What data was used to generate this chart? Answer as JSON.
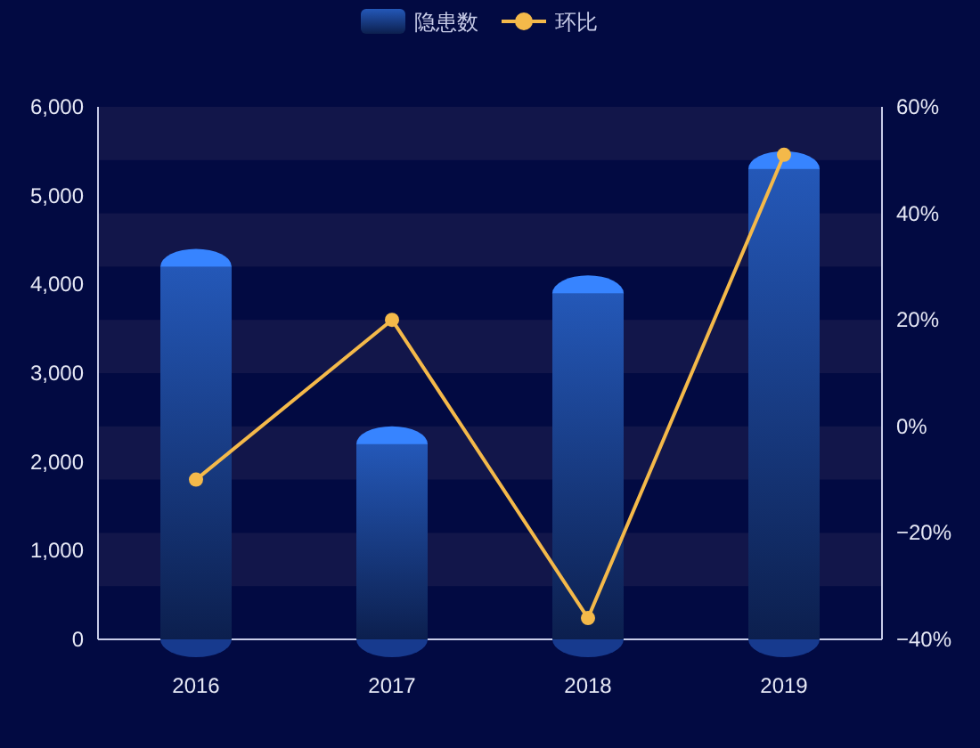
{
  "chart_data": {
    "type": "bar",
    "categories": [
      "2016",
      "2017",
      "2018",
      "2019"
    ],
    "series": [
      {
        "name": "隐患数",
        "color": "#2458b8",
        "values": [
          4200,
          2200,
          3900,
          5300
        ]
      },
      {
        "name": "环比",
        "type": "line",
        "axis": "y2",
        "color": "#f4b94a",
        "values": [
          -10,
          20,
          -36,
          51
        ]
      }
    ],
    "ylim": [
      0,
      6000
    ],
    "yticks": [
      0,
      {
        "value": 1000,
        "label": "1,000"
      },
      {
        "value": 2000,
        "label": "2,000"
      },
      {
        "value": 3000,
        "label": "3,000"
      },
      {
        "value": 4000,
        "label": "4,000"
      },
      {
        "value": 5000,
        "label": "5,000"
      },
      {
        "value": 6000,
        "label": "6,000"
      }
    ],
    "y2lim": [
      -40,
      60
    ],
    "y2ticks": [
      {
        "value": -40,
        "label": "−40%"
      },
      {
        "value": -20,
        "label": "−20%"
      },
      {
        "value": 0,
        "label": "0%"
      },
      {
        "value": 20,
        "label": "20%"
      },
      {
        "value": 40,
        "label": "40%"
      },
      {
        "value": 60,
        "label": "60%"
      }
    ],
    "bands": [
      {
        "axis": "y",
        "from": 5400,
        "to": 6000,
        "color": "#12164a"
      },
      {
        "axis": "y",
        "from": 4200,
        "to": 4800,
        "color": "#12164a"
      },
      {
        "axis": "y",
        "from": 3000,
        "to": 3600,
        "color": "#12164a"
      },
      {
        "axis": "y",
        "from": 1800,
        "to": 2400,
        "color": "#12164a"
      },
      {
        "axis": "y",
        "from": 600,
        "to": 1200,
        "color": "#12164a"
      }
    ],
    "marker": "circle",
    "legend": "top",
    "grid": false
  }
}
